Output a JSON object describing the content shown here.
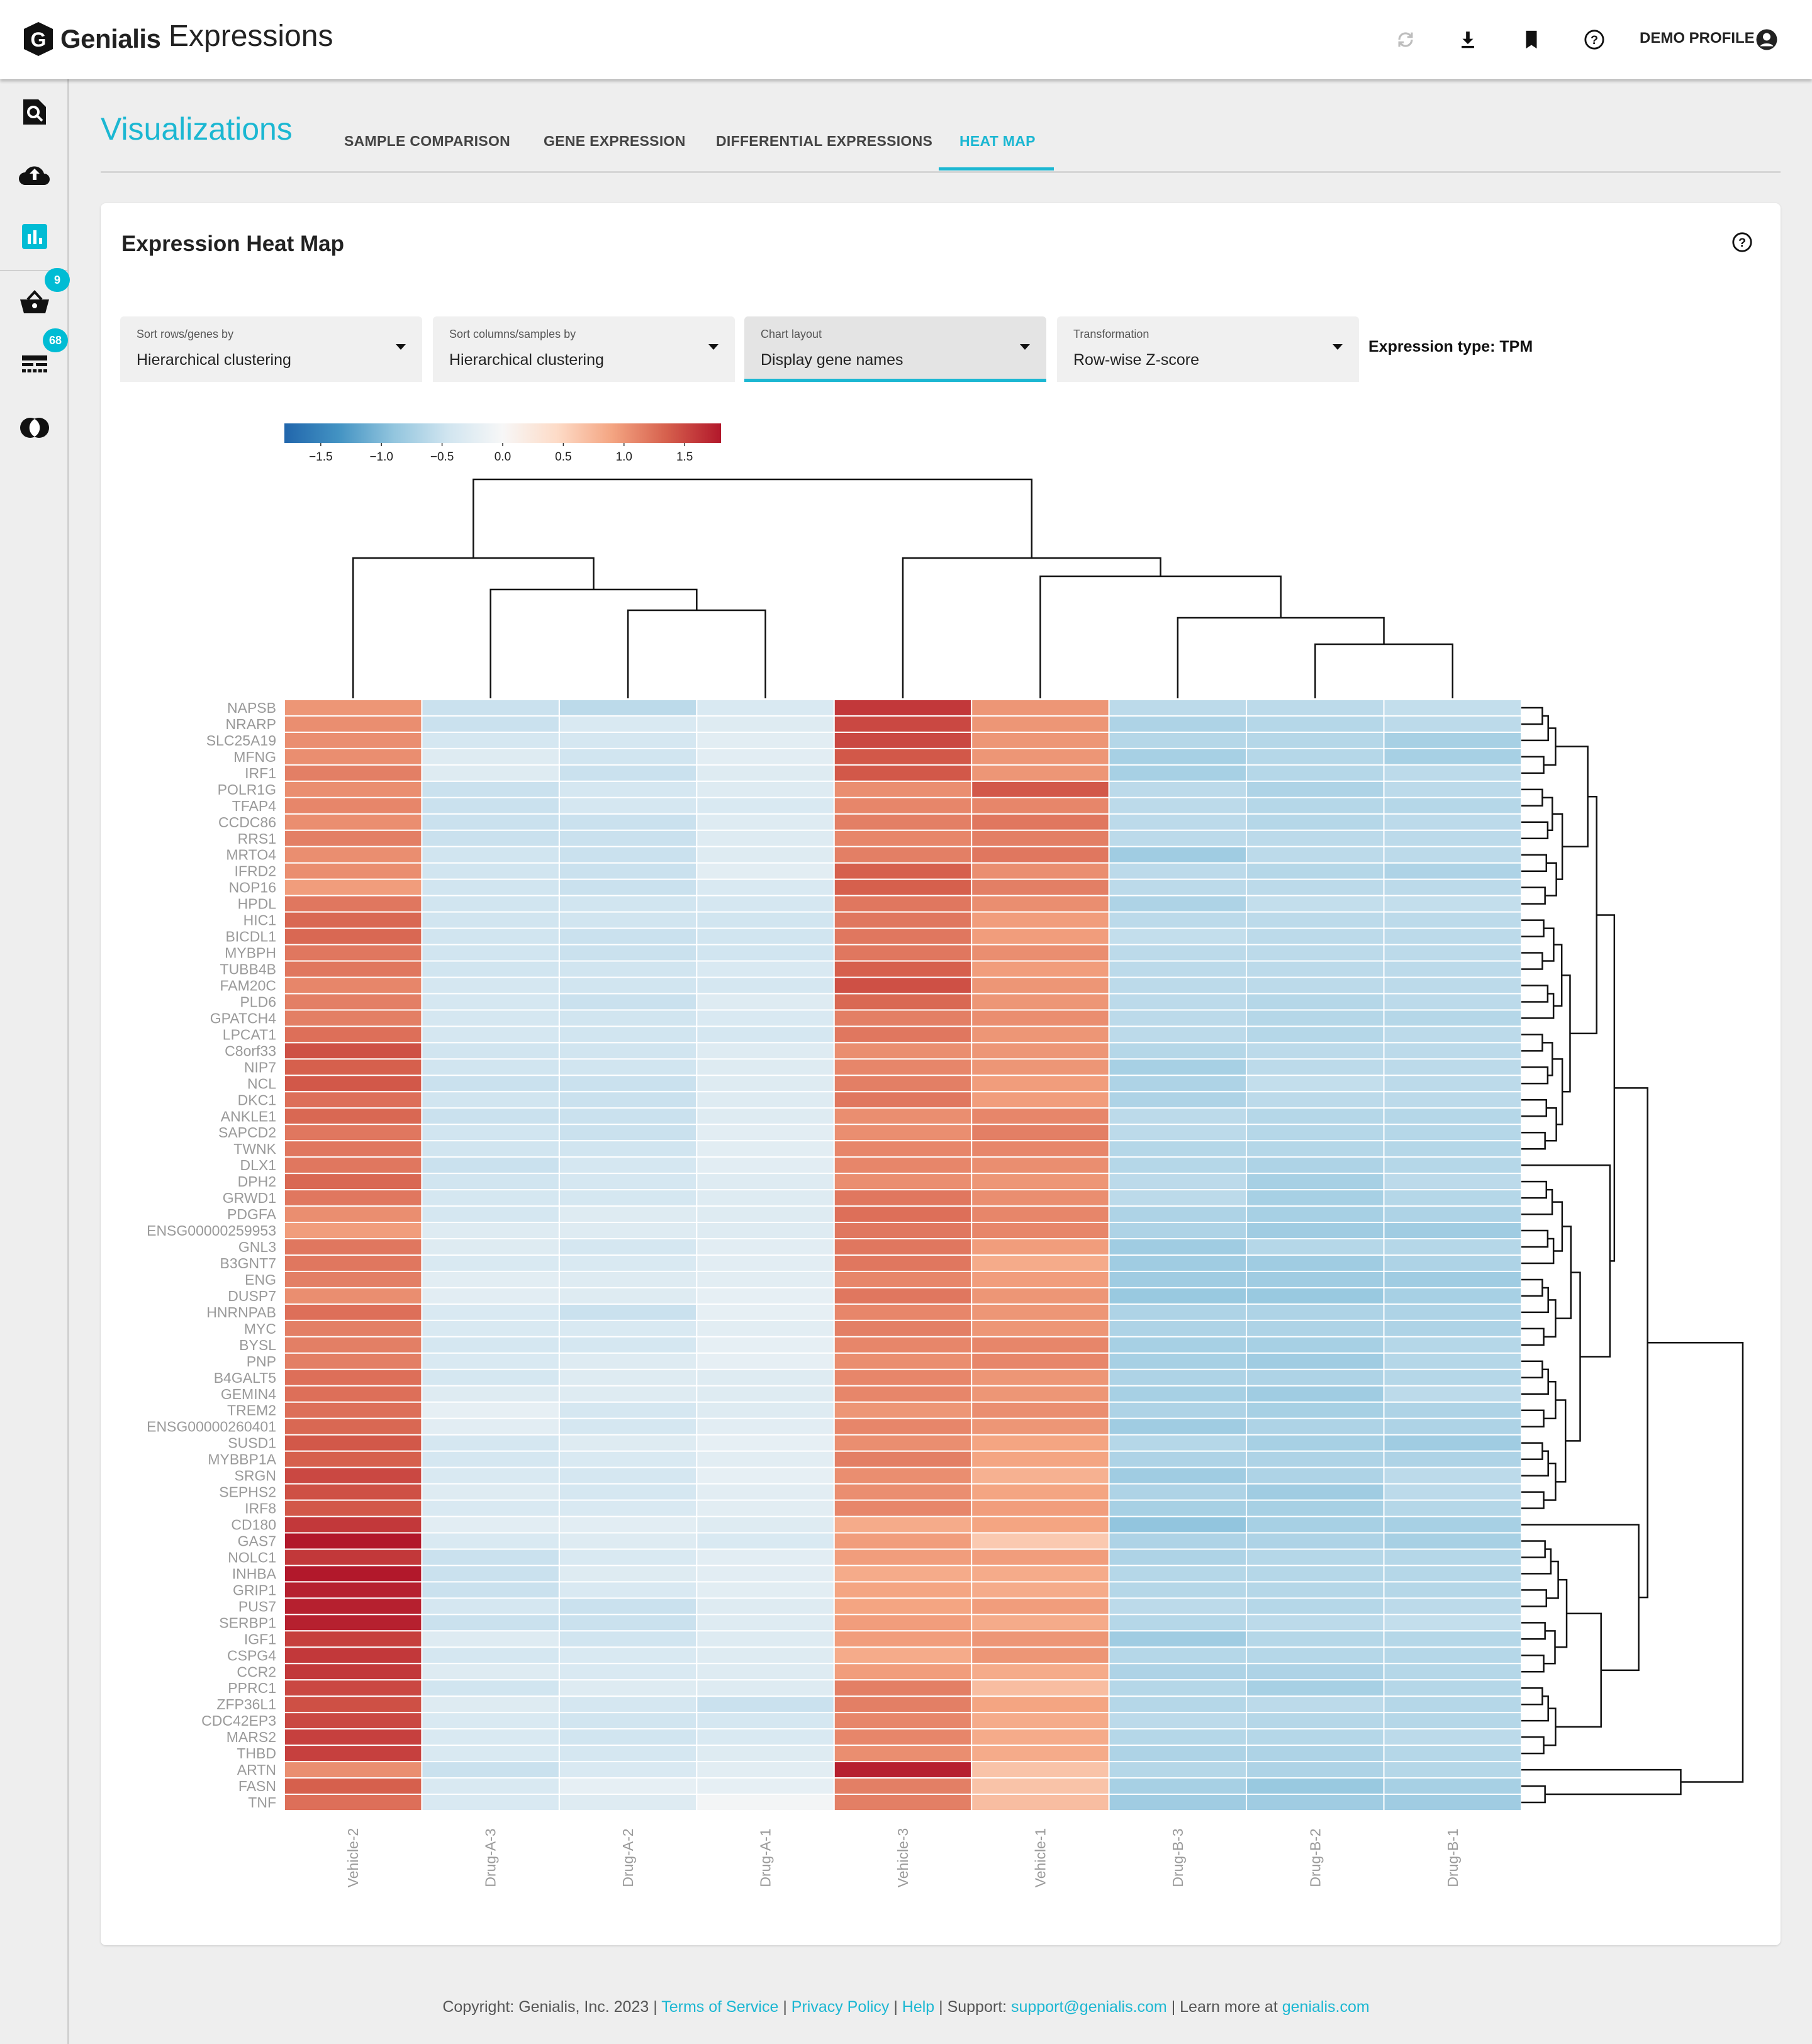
{
  "header": {
    "brand": "Genialis",
    "app_name": "Expressions",
    "profile_label": "DEMO PROFILE",
    "icons": [
      "refresh-icon",
      "download-icon",
      "bookmark-icon",
      "help-icon",
      "account-icon"
    ]
  },
  "sidebar": {
    "items": [
      {
        "icon": "search-document-icon"
      },
      {
        "icon": "cloud-upload-icon"
      },
      {
        "icon": "bar-chart-icon",
        "active": true
      },
      {
        "icon": "basket-icon",
        "badge": "9"
      },
      {
        "icon": "gene-list-icon",
        "badge": "68"
      },
      {
        "icon": "overlap-circles-icon"
      }
    ],
    "accent": "#00bcd4"
  },
  "page": {
    "title": "Visualizations",
    "tabs": [
      {
        "label": "SAMPLE COMPARISON"
      },
      {
        "label": "GENE EXPRESSION"
      },
      {
        "label": "DIFFERENTIAL EXPRESSIONS"
      },
      {
        "label": "HEAT MAP",
        "active": true
      }
    ]
  },
  "card": {
    "title": "Expression Heat Map",
    "dropdowns": [
      {
        "label": "Sort rows/genes by",
        "value": "Hierarchical clustering"
      },
      {
        "label": "Sort columns/samples by",
        "value": "Hierarchical clustering"
      },
      {
        "label": "Chart layout",
        "value": "Display gene names",
        "active": true
      },
      {
        "label": "Transformation",
        "value": "Row-wise Z-score"
      }
    ],
    "expression_type": "Expression type: TPM"
  },
  "chart_data": {
    "type": "heatmap",
    "colormap": "RdBu_r",
    "vmin": -1.8,
    "vmax": 1.8,
    "colorbar_ticks": [
      "−1.5",
      "−1.0",
      "−0.5",
      "0.0",
      "0.5",
      "1.0",
      "1.5"
    ],
    "colorbar_tick_values": [
      -1.5,
      -1.0,
      -0.5,
      0.0,
      0.5,
      1.0,
      1.5
    ],
    "columns": [
      "Vehicle-2",
      "Drug-A-3",
      "Drug-A-2",
      "Drug-A-1",
      "Vehicle-3",
      "Vehicle-1",
      "Drug-B-3",
      "Drug-B-2",
      "Drug-B-1"
    ],
    "rows": [
      "NAPSB",
      "NRARP",
      "SLC25A19",
      "MFNG",
      "IRF1",
      "POLR1G",
      "TFAP4",
      "CCDC86",
      "RRS1",
      "MRTO4",
      "IFRD2",
      "NOP16",
      "HPDL",
      "HIC1",
      "BICDL1",
      "MYBPH",
      "TUBB4B",
      "FAM20C",
      "PLD6",
      "GPATCH4",
      "LPCAT1",
      "C8orf33",
      "NIP7",
      "NCL",
      "DKC1",
      "ANKLE1",
      "SAPCD2",
      "TWNK",
      "DLX1",
      "DPH2",
      "GRWD1",
      "PDGFA",
      "ENSG00000259953",
      "GNL3",
      "B3GNT7",
      "ENG",
      "DUSP7",
      "HNRNPAB",
      "MYC",
      "BYSL",
      "PNP",
      "B4GALT5",
      "GEMIN4",
      "TREM2",
      "ENSG00000260401",
      "SUSD1",
      "MYBBP1A",
      "SRGN",
      "SEPHS2",
      "IRF8",
      "CD180",
      "GAS7",
      "NOLC1",
      "INHBA",
      "GRIP1",
      "PUS7",
      "SERBP1",
      "IGF1",
      "CSPG4",
      "CCR2",
      "PPRC1",
      "ZFP36L1",
      "CDC42EP3",
      "MARS2",
      "THBD",
      "ARTN",
      "FASN",
      "TNF"
    ],
    "values": [
      [
        1.0,
        -0.5,
        -0.6,
        -0.35,
        1.6,
        1.0,
        -0.6,
        -0.6,
        -0.55
      ],
      [
        1.05,
        -0.5,
        -0.35,
        -0.3,
        1.5,
        1.0,
        -0.7,
        -0.65,
        -0.6
      ],
      [
        1.05,
        -0.4,
        -0.4,
        -0.25,
        1.5,
        1.0,
        -0.65,
        -0.65,
        -0.75
      ],
      [
        1.05,
        -0.3,
        -0.45,
        -0.25,
        1.4,
        1.0,
        -0.75,
        -0.65,
        -0.75
      ],
      [
        1.15,
        -0.3,
        -0.5,
        -0.3,
        1.4,
        1.0,
        -0.75,
        -0.65,
        -0.6
      ],
      [
        1.05,
        -0.5,
        -0.4,
        -0.3,
        1.05,
        1.4,
        -0.6,
        -0.7,
        -0.6
      ],
      [
        1.1,
        -0.5,
        -0.4,
        -0.35,
        1.1,
        1.1,
        -0.6,
        -0.65,
        -0.65
      ],
      [
        1.05,
        -0.5,
        -0.5,
        -0.3,
        1.15,
        1.2,
        -0.6,
        -0.65,
        -0.6
      ],
      [
        1.15,
        -0.5,
        -0.5,
        -0.3,
        1.1,
        1.15,
        -0.6,
        -0.6,
        -0.6
      ],
      [
        1.05,
        -0.45,
        -0.5,
        -0.3,
        1.15,
        1.2,
        -0.8,
        -0.6,
        -0.6
      ],
      [
        1.05,
        -0.45,
        -0.5,
        -0.25,
        1.35,
        1.05,
        -0.6,
        -0.65,
        -0.7
      ],
      [
        0.95,
        -0.45,
        -0.5,
        -0.35,
        1.35,
        1.15,
        -0.6,
        -0.6,
        -0.6
      ],
      [
        1.2,
        -0.45,
        -0.45,
        -0.4,
        1.2,
        1.05,
        -0.7,
        -0.55,
        -0.55
      ],
      [
        1.3,
        -0.45,
        -0.45,
        -0.45,
        1.2,
        0.95,
        -0.6,
        -0.6,
        -0.6
      ],
      [
        1.3,
        -0.45,
        -0.5,
        -0.45,
        1.2,
        0.95,
        -0.55,
        -0.6,
        -0.6
      ],
      [
        1.2,
        -0.45,
        -0.5,
        -0.45,
        1.2,
        1.05,
        -0.6,
        -0.6,
        -0.6
      ],
      [
        1.2,
        -0.45,
        -0.45,
        -0.35,
        1.35,
        0.95,
        -0.6,
        -0.6,
        -0.6
      ],
      [
        1.1,
        -0.4,
        -0.45,
        -0.4,
        1.45,
        1.0,
        -0.6,
        -0.6,
        -0.6
      ],
      [
        1.15,
        -0.4,
        -0.5,
        -0.3,
        1.3,
        1.0,
        -0.6,
        -0.65,
        -0.6
      ],
      [
        1.15,
        -0.4,
        -0.45,
        -0.35,
        1.15,
        1.05,
        -0.6,
        -0.65,
        -0.65
      ],
      [
        1.25,
        -0.4,
        -0.45,
        -0.4,
        1.2,
        1.0,
        -0.6,
        -0.65,
        -0.6
      ],
      [
        1.45,
        -0.45,
        -0.45,
        -0.3,
        1.05,
        1.0,
        -0.65,
        -0.6,
        -0.6
      ],
      [
        1.35,
        -0.45,
        -0.45,
        -0.3,
        1.1,
        1.0,
        -0.75,
        -0.6,
        -0.6
      ],
      [
        1.4,
        -0.5,
        -0.5,
        -0.3,
        1.15,
        0.95,
        -0.7,
        -0.55,
        -0.6
      ],
      [
        1.25,
        -0.45,
        -0.5,
        -0.3,
        1.2,
        0.95,
        -0.7,
        -0.6,
        -0.6
      ],
      [
        1.3,
        -0.5,
        -0.5,
        -0.3,
        1.05,
        1.1,
        -0.6,
        -0.65,
        -0.65
      ],
      [
        1.2,
        -0.45,
        -0.5,
        -0.25,
        1.05,
        1.15,
        -0.6,
        -0.65,
        -0.65
      ],
      [
        1.2,
        -0.45,
        -0.45,
        -0.25,
        1.1,
        1.1,
        -0.65,
        -0.65,
        -0.65
      ],
      [
        1.2,
        -0.5,
        -0.4,
        -0.25,
        1.1,
        1.05,
        -0.65,
        -0.7,
        -0.65
      ],
      [
        1.3,
        -0.45,
        -0.4,
        -0.3,
        1.05,
        1.0,
        -0.6,
        -0.75,
        -0.6
      ],
      [
        1.2,
        -0.4,
        -0.4,
        -0.3,
        1.2,
        1.05,
        -0.6,
        -0.75,
        -0.65
      ],
      [
        1.05,
        -0.4,
        -0.3,
        -0.3,
        1.25,
        1.1,
        -0.7,
        -0.75,
        -0.7
      ],
      [
        0.95,
        -0.3,
        -0.3,
        -0.3,
        1.2,
        1.1,
        -0.7,
        -0.8,
        -0.8
      ],
      [
        1.2,
        -0.3,
        -0.4,
        -0.25,
        1.2,
        0.95,
        -0.8,
        -0.65,
        -0.65
      ],
      [
        1.2,
        -0.35,
        -0.35,
        -0.25,
        1.2,
        0.85,
        -0.8,
        -0.8,
        -0.7
      ],
      [
        1.15,
        -0.25,
        -0.3,
        -0.25,
        1.1,
        0.95,
        -0.8,
        -0.8,
        -0.8
      ],
      [
        1.05,
        -0.25,
        -0.3,
        -0.2,
        1.2,
        1.0,
        -0.85,
        -0.85,
        -0.75
      ],
      [
        1.25,
        -0.35,
        -0.5,
        -0.2,
        1.1,
        1.0,
        -0.7,
        -0.7,
        -0.7
      ],
      [
        1.15,
        -0.35,
        -0.35,
        -0.25,
        1.15,
        1.0,
        -0.7,
        -0.7,
        -0.7
      ],
      [
        1.15,
        -0.4,
        -0.4,
        -0.2,
        1.1,
        1.1,
        -0.75,
        -0.75,
        -0.65
      ],
      [
        1.15,
        -0.35,
        -0.3,
        -0.2,
        1.05,
        1.1,
        -0.75,
        -0.8,
        -0.65
      ],
      [
        1.25,
        -0.4,
        -0.3,
        -0.3,
        1.1,
        1.0,
        -0.7,
        -0.7,
        -0.65
      ],
      [
        1.25,
        -0.3,
        -0.3,
        -0.3,
        1.1,
        1.0,
        -0.75,
        -0.8,
        -0.6
      ],
      [
        1.25,
        -0.2,
        -0.4,
        -0.3,
        1.0,
        1.05,
        -0.7,
        -0.75,
        -0.7
      ],
      [
        1.3,
        -0.25,
        -0.4,
        -0.25,
        1.1,
        1.0,
        -0.8,
        -0.7,
        -0.7
      ],
      [
        1.4,
        -0.4,
        -0.3,
        -0.2,
        1.05,
        0.9,
        -0.65,
        -0.75,
        -0.8
      ],
      [
        1.35,
        -0.4,
        -0.35,
        -0.25,
        1.15,
        0.9,
        -0.7,
        -0.7,
        -0.7
      ],
      [
        1.5,
        -0.35,
        -0.4,
        -0.2,
        1.05,
        0.8,
        -0.8,
        -0.7,
        -0.6
      ],
      [
        1.45,
        -0.3,
        -0.4,
        -0.25,
        1.05,
        0.9,
        -0.7,
        -0.8,
        -0.6
      ],
      [
        1.4,
        -0.35,
        -0.35,
        -0.25,
        1.1,
        0.95,
        -0.75,
        -0.75,
        -0.65
      ],
      [
        1.6,
        -0.25,
        -0.25,
        -0.3,
        0.85,
        0.9,
        -0.9,
        -0.75,
        -0.75
      ],
      [
        1.9,
        -0.35,
        -0.3,
        -0.35,
        0.95,
        0.6,
        -0.7,
        -0.7,
        -0.75
      ],
      [
        1.6,
        -0.5,
        -0.35,
        -0.25,
        0.95,
        0.95,
        -0.7,
        -0.65,
        -0.65
      ],
      [
        1.8,
        -0.5,
        -0.3,
        -0.25,
        0.85,
        0.85,
        -0.65,
        -0.65,
        -0.65
      ],
      [
        1.75,
        -0.5,
        -0.35,
        -0.25,
        0.9,
        0.85,
        -0.65,
        -0.65,
        -0.65
      ],
      [
        1.75,
        -0.4,
        -0.5,
        -0.3,
        0.9,
        0.95,
        -0.6,
        -0.65,
        -0.6
      ],
      [
        1.75,
        -0.5,
        -0.5,
        -0.3,
        0.95,
        0.85,
        -0.65,
        -0.6,
        -0.55
      ],
      [
        1.55,
        -0.3,
        -0.45,
        -0.3,
        0.95,
        1.0,
        -0.8,
        -0.65,
        -0.65
      ],
      [
        1.6,
        -0.4,
        -0.35,
        -0.3,
        0.85,
        1.0,
        -0.65,
        -0.65,
        -0.65
      ],
      [
        1.6,
        -0.3,
        -0.35,
        -0.3,
        0.95,
        0.85,
        -0.7,
        -0.7,
        -0.65
      ],
      [
        1.5,
        -0.45,
        -0.3,
        -0.3,
        1.15,
        0.7,
        -0.65,
        -0.75,
        -0.65
      ],
      [
        1.45,
        -0.3,
        -0.4,
        -0.5,
        1.15,
        0.9,
        -0.65,
        -0.6,
        -0.65
      ],
      [
        1.5,
        -0.35,
        -0.45,
        -0.4,
        1.1,
        0.85,
        -0.6,
        -0.65,
        -0.65
      ],
      [
        1.55,
        -0.35,
        -0.45,
        -0.35,
        1.1,
        0.85,
        -0.65,
        -0.65,
        -0.6
      ],
      [
        1.55,
        -0.35,
        -0.4,
        -0.3,
        1.05,
        0.85,
        -0.7,
        -0.7,
        -0.65
      ],
      [
        1.05,
        -0.5,
        -0.35,
        -0.25,
        1.75,
        0.65,
        -0.65,
        -0.7,
        -0.65
      ],
      [
        1.35,
        -0.35,
        -0.2,
        -0.2,
        1.15,
        0.65,
        -0.75,
        -0.85,
        -0.75
      ],
      [
        1.25,
        -0.35,
        -0.3,
        -0.05,
        1.15,
        0.7,
        -0.8,
        -0.8,
        -0.8
      ]
    ],
    "row_dendrogram": true,
    "column_dendrogram": true
  },
  "footer": {
    "copyright": "Copyright: Genialis, Inc. 2023",
    "sep": " | ",
    "terms": "Terms of Service",
    "privacy": "Privacy Policy",
    "help": "Help",
    "support_label": "Support: ",
    "support_email": "support@genialis.com",
    "learn_label": "Learn more at ",
    "site": "genialis.com"
  }
}
